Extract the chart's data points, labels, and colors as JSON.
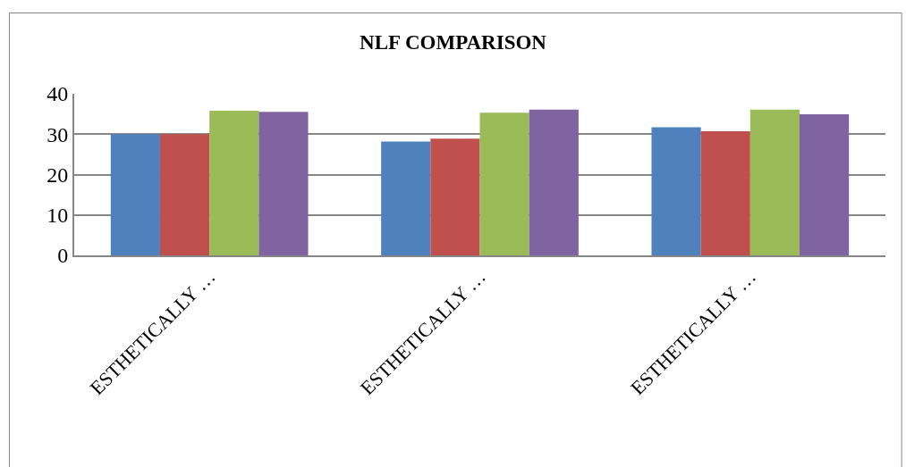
{
  "chart_data": {
    "type": "bar",
    "title": "NLF COMPARISON",
    "categories": [
      "ESTHETICALLY …",
      "ESTHETICALLY …",
      "ESTHETICALLY …"
    ],
    "series": [
      {
        "color": "#4f81bd",
        "values": [
          30.0,
          28.2,
          31.7
        ]
      },
      {
        "color": "#c0504d",
        "values": [
          30.0,
          28.9,
          30.7
        ]
      },
      {
        "color": "#9bbb59",
        "values": [
          35.8,
          35.3,
          36.1
        ]
      },
      {
        "color": "#8064a2",
        "values": [
          35.5,
          36.1,
          34.9
        ]
      }
    ],
    "ylim": [
      0,
      40
    ],
    "yticks": [
      0,
      10,
      20,
      30,
      40
    ],
    "grid": "y"
  }
}
